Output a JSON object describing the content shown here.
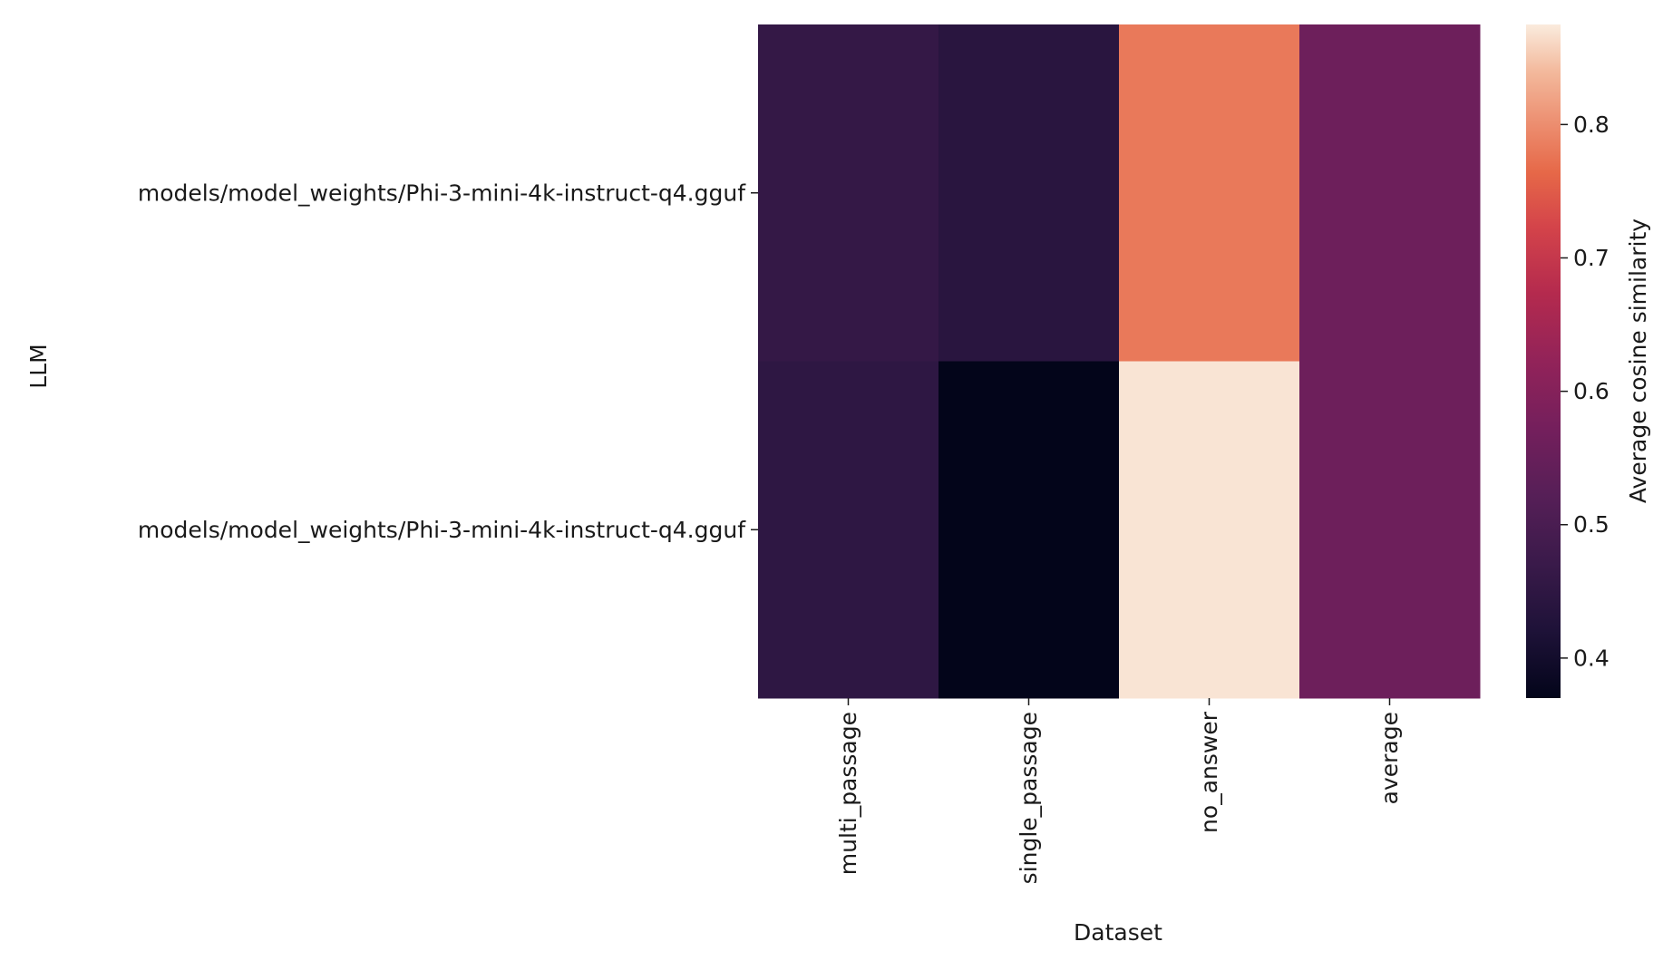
{
  "chart_data": {
    "type": "heatmap",
    "title": "",
    "xlabel": "Dataset",
    "ylabel": "LLM",
    "x_categories": [
      "multi_passage",
      "single_passage",
      "no_answer",
      "average"
    ],
    "y_categories": [
      "models/model_weights/Phi-3-mini-4k-instruct-q4.gguf",
      "models/model_weights/Phi-3-mini-4k-instruct-q4.gguf"
    ],
    "values": [
      [
        0.46,
        0.44,
        0.78,
        0.56
      ],
      [
        0.45,
        0.37,
        0.87,
        0.56
      ]
    ],
    "colorbar": {
      "label": "Average cosine similarity",
      "range": [
        0.37,
        0.875
      ],
      "ticks": [
        0.4,
        0.5,
        0.6,
        0.7,
        0.8
      ],
      "tick_labels": [
        "0.4",
        "0.5",
        "0.6",
        "0.7",
        "0.8"
      ],
      "colormap": "rocket"
    },
    "grid": false
  }
}
